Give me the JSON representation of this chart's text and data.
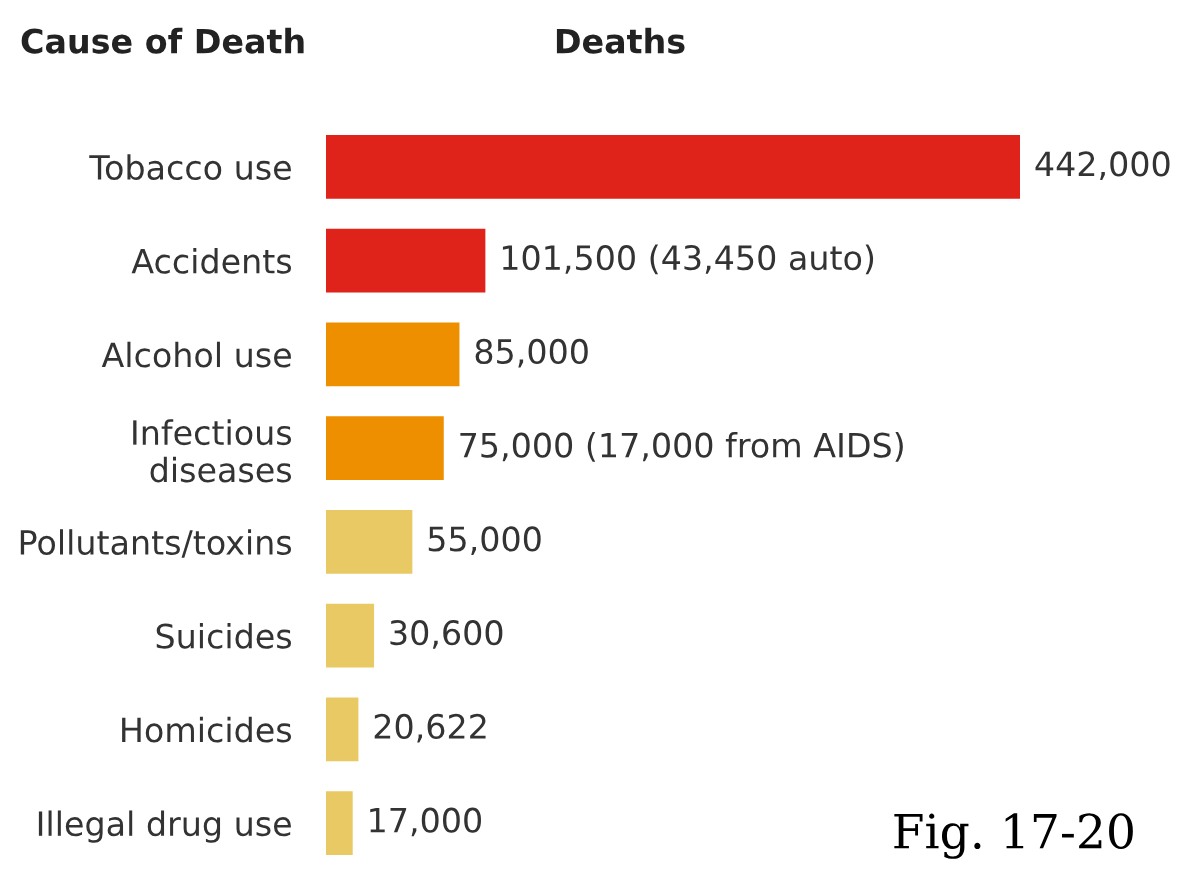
{
  "chart_data": {
    "type": "bar",
    "orientation": "horizontal",
    "title": "Deaths",
    "ylabel": "Cause of Death",
    "categories": [
      "Tobacco use",
      "Accidents",
      "Alcohol use",
      "Infectious\ndiseases",
      "Pollutants/toxins",
      "Suicides",
      "Homicides",
      "Illegal drug use"
    ],
    "values": [
      442000,
      101500,
      85000,
      75000,
      55000,
      30600,
      20622,
      17000
    ],
    "colors": [
      "#e0231a",
      "#e0231a",
      "#ee8f00",
      "#ee8f00",
      "#e8c963",
      "#e8c963",
      "#e8c963",
      "#e8c963"
    ],
    "value_labels": [
      "442,000",
      "101,500 (43,450 auto)",
      "85,000",
      "75,000 (17,000 from AIDS)",
      "55,000",
      "30,600",
      "20,622",
      "17,000"
    ],
    "annotations": [
      "Fig. 17-20"
    ],
    "grid": false,
    "legend": false
  }
}
